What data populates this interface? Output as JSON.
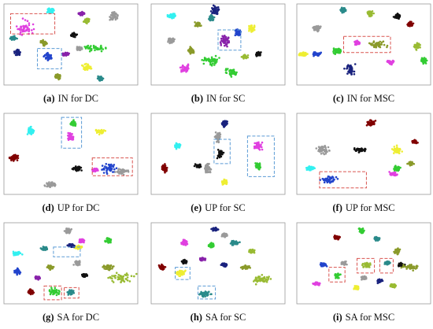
{
  "panels": [
    {
      "label": "(a)",
      "text": "IN for DC"
    },
    {
      "label": "(b)",
      "text": "IN for SC"
    },
    {
      "label": "(c)",
      "text": "IN for MSC"
    },
    {
      "label": "(d)",
      "text": "UP for DC"
    },
    {
      "label": "(e)",
      "text": "UP for SC"
    },
    {
      "label": "(f)",
      "text": "UP for MSC"
    },
    {
      "label": "(g)",
      "text": "SA for DC"
    },
    {
      "label": "(h)",
      "text": "SA for SC"
    },
    {
      "label": "(i)",
      "text": "SA for MSC"
    }
  ]
}
